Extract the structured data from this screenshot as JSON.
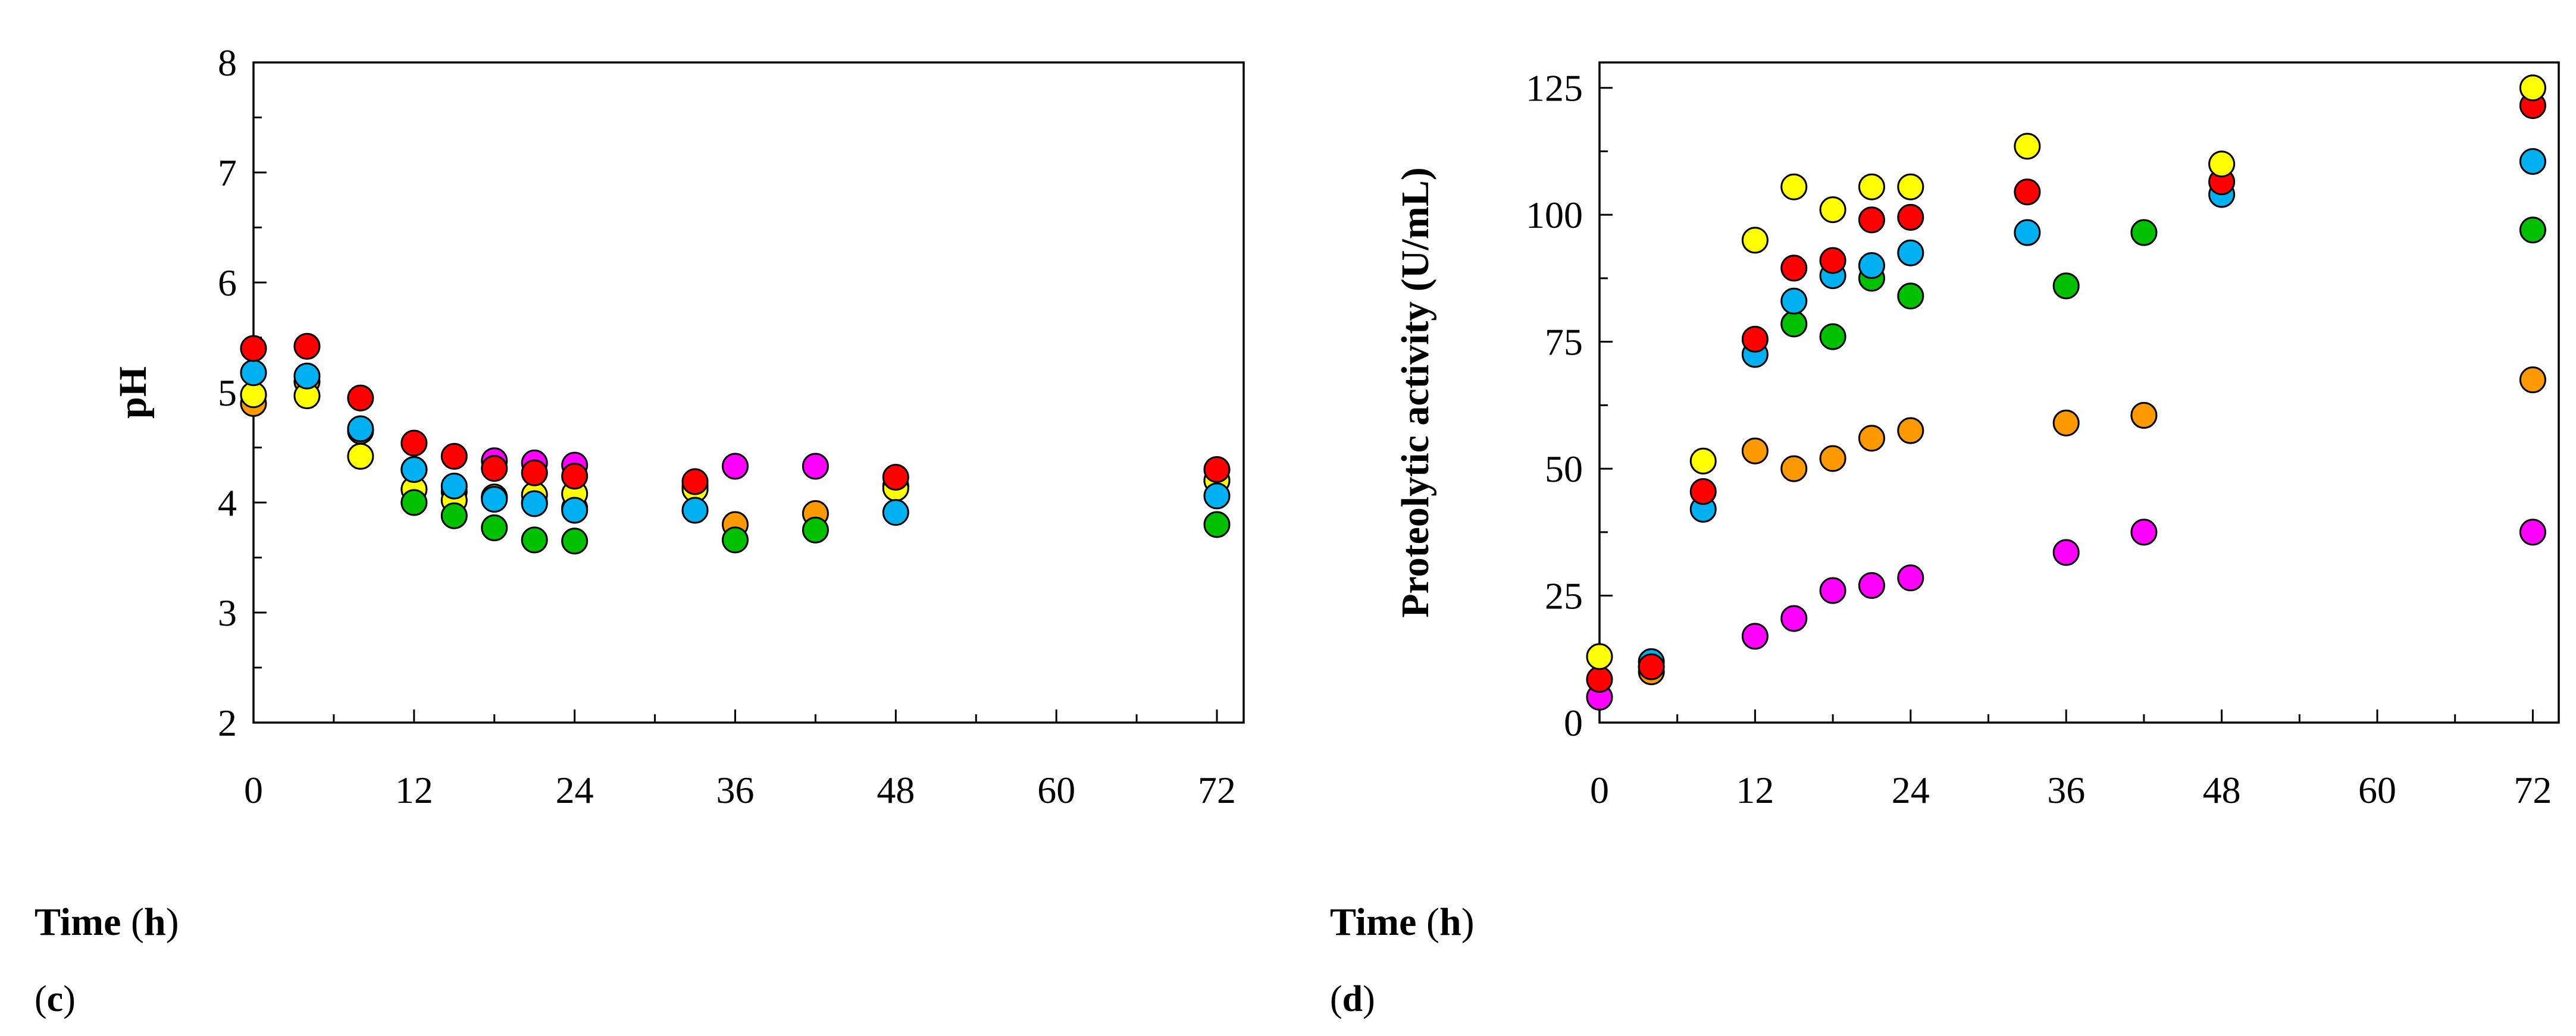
{
  "colors": {
    "yellow": "#ffff00",
    "red": "#ff0000",
    "blue": "#00b0f0",
    "green": "#00c000",
    "orange": "#ff9900",
    "magenta": "#ff00ff"
  },
  "chart_data": [
    {
      "type": "scatter",
      "panel": "c",
      "title": "",
      "xlabel": "Time (h)",
      "ylabel": "pH",
      "xlim": [
        0,
        74
      ],
      "ylim": [
        2,
        8
      ],
      "xticks": [
        0,
        12,
        24,
        36,
        48,
        60,
        72
      ],
      "yticks": [
        2,
        3,
        4,
        5,
        6,
        7,
        8
      ],
      "series": [
        {
          "name": "orange",
          "color": "orange",
          "x": [
            0,
            4,
            8,
            12,
            15,
            18,
            21,
            24,
            33,
            36,
            42,
            48,
            72
          ],
          "y": [
            4.9,
            5.1,
            4.65,
            4.3,
            4.1,
            4.05,
            4.0,
            3.95,
            4.15,
            3.8,
            3.9,
            4.15,
            4.2
          ]
        },
        {
          "name": "yellow",
          "color": "yellow",
          "x": [
            0,
            4,
            8,
            12,
            15,
            18,
            21,
            24,
            33,
            48,
            72
          ],
          "y": [
            4.98,
            4.97,
            4.42,
            4.12,
            4.02,
            4.05,
            4.07,
            4.08,
            4.12,
            4.13,
            4.2
          ]
        },
        {
          "name": "green",
          "color": "green",
          "x": [
            12,
            15,
            18,
            21,
            24,
            36,
            42,
            72
          ],
          "y": [
            4.0,
            3.88,
            3.77,
            3.66,
            3.65,
            3.66,
            3.75,
            3.8
          ]
        },
        {
          "name": "magenta",
          "color": "magenta",
          "x": [
            18,
            21,
            24,
            36,
            42
          ],
          "y": [
            4.38,
            4.36,
            4.34,
            4.33,
            4.33
          ]
        },
        {
          "name": "blue",
          "color": "blue",
          "x": [
            0,
            4,
            8,
            12,
            15,
            18,
            21,
            24,
            33,
            48,
            72
          ],
          "y": [
            5.18,
            5.15,
            4.67,
            4.3,
            4.15,
            4.03,
            3.99,
            3.93,
            3.93,
            3.91,
            4.06
          ]
        },
        {
          "name": "red",
          "color": "red",
          "x": [
            0,
            4,
            8,
            12,
            15,
            18,
            21,
            24,
            33,
            48,
            72
          ],
          "y": [
            5.4,
            5.42,
            4.95,
            4.54,
            4.42,
            4.31,
            4.27,
            4.24,
            4.19,
            4.23,
            4.3
          ]
        }
      ]
    },
    {
      "type": "scatter",
      "panel": "d",
      "title": "",
      "xlabel": "Time (h)",
      "ylabel": "Proteolytic activity (U/mL)",
      "xlim": [
        0,
        74
      ],
      "ylim": [
        0,
        130
      ],
      "xticks": [
        0,
        12,
        24,
        36,
        48,
        60,
        72
      ],
      "yticks": [
        0,
        25,
        50,
        75,
        100,
        125
      ],
      "series": [
        {
          "name": "magenta",
          "color": "magenta",
          "x": [
            0,
            12,
            15,
            18,
            21,
            24,
            36,
            42,
            72
          ],
          "y": [
            5,
            17,
            20.5,
            26,
            27,
            28.5,
            33.5,
            37.5,
            37.5
          ]
        },
        {
          "name": "orange",
          "color": "orange",
          "x": [
            4,
            12,
            15,
            18,
            21,
            24,
            36,
            42,
            72
          ],
          "y": [
            10,
            53.5,
            50,
            52,
            56,
            57.5,
            59,
            60.5,
            67.5
          ]
        },
        {
          "name": "green",
          "color": "green",
          "x": [
            4,
            15,
            18,
            21,
            24,
            36,
            42,
            72
          ],
          "y": [
            11,
            78.5,
            76,
            87.5,
            84,
            86,
            96.5,
            97
          ]
        },
        {
          "name": "blue",
          "color": "blue",
          "x": [
            4,
            8,
            12,
            15,
            18,
            21,
            24,
            33,
            48,
            72
          ],
          "y": [
            12,
            42,
            72.5,
            83,
            88,
            90,
            92.5,
            96.5,
            104,
            110.5
          ]
        },
        {
          "name": "red",
          "color": "red",
          "x": [
            0,
            4,
            8,
            12,
            15,
            18,
            21,
            24,
            33,
            48,
            72
          ],
          "y": [
            8.5,
            11,
            45.5,
            75.5,
            89.5,
            91,
            99,
            99.5,
            104.5,
            106.5,
            121.5
          ]
        },
        {
          "name": "yellow",
          "color": "yellow",
          "x": [
            0,
            8,
            12,
            15,
            18,
            21,
            24,
            33,
            48,
            72
          ],
          "y": [
            13,
            51.5,
            95,
            105.5,
            101,
            105.5,
            105.5,
            113.5,
            110,
            125
          ]
        }
      ]
    }
  ],
  "panels": {
    "c": {
      "time_word": "Time",
      "time_open": "(",
      "time_unit": "h",
      "time_close": ")",
      "label_open": "(",
      "label_letter": "c",
      "label_close": ")"
    },
    "d": {
      "time_word": "Time",
      "time_open": "(",
      "time_unit": "h",
      "time_close": ")",
      "label_open": "(",
      "label_letter": "d",
      "label_close": ")"
    }
  }
}
